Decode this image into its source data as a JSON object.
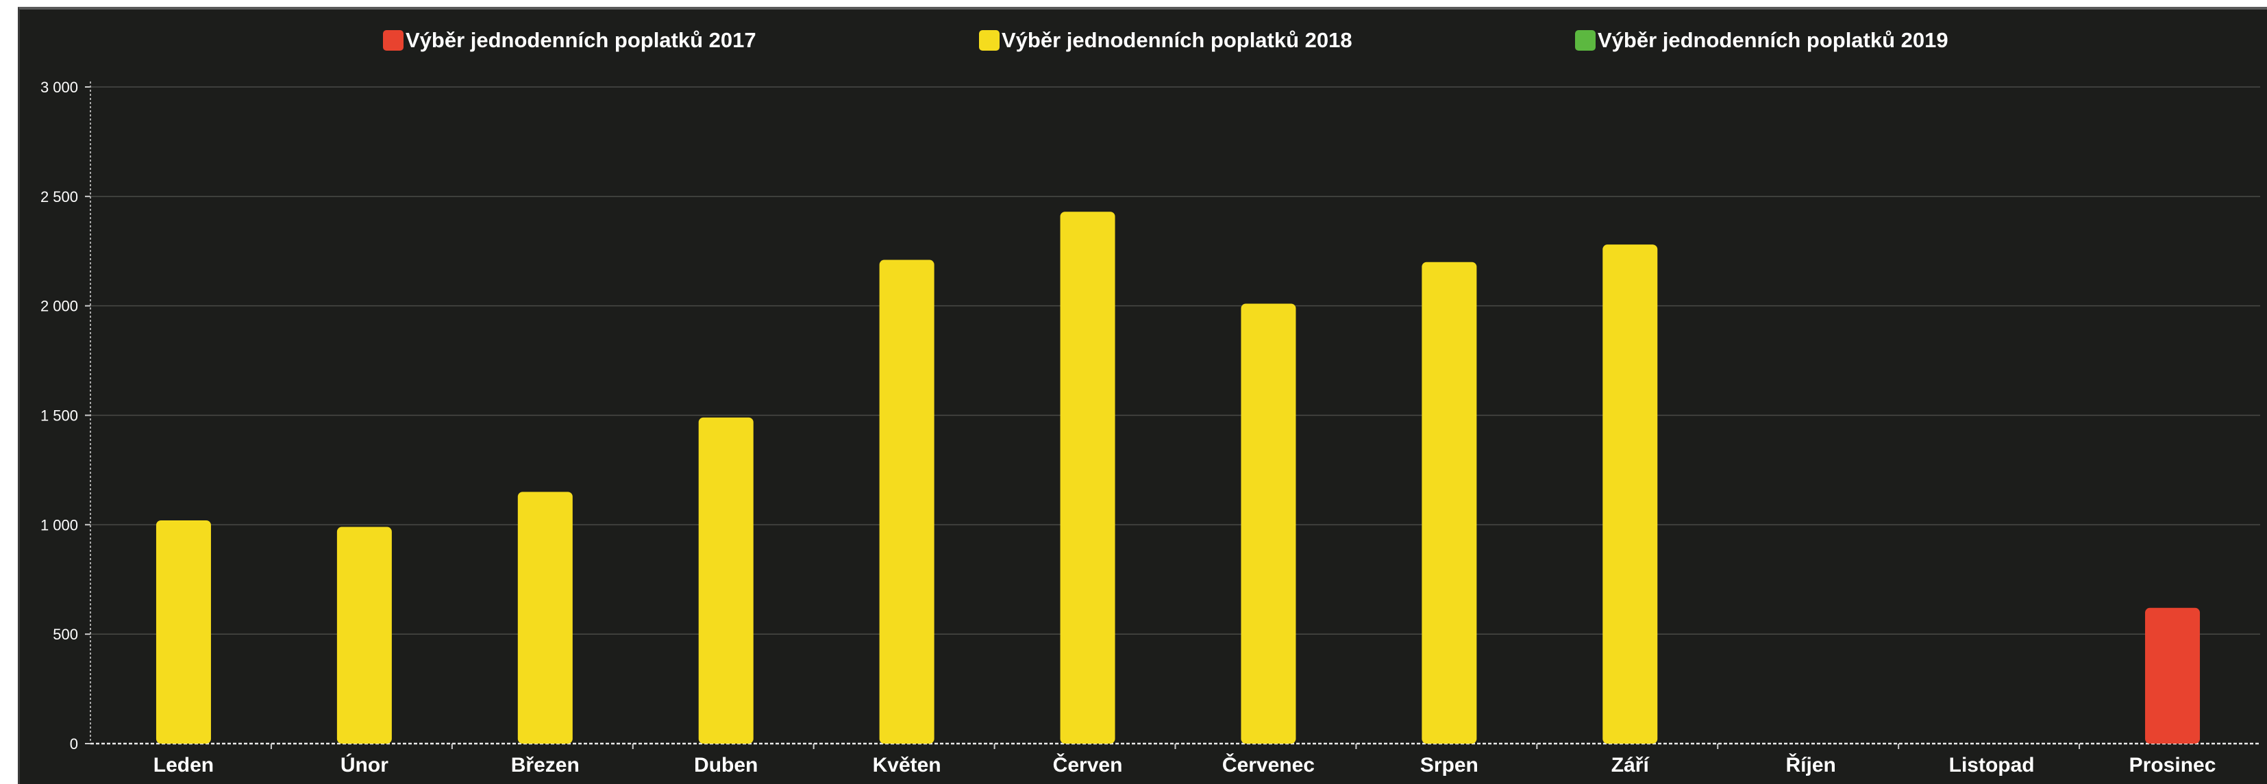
{
  "chart_data": {
    "type": "bar",
    "title": "",
    "xlabel": "",
    "ylabel": "",
    "categories": [
      "Leden",
      "Únor",
      "Březen",
      "Duben",
      "Květen",
      "Červen",
      "Červenec",
      "Srpen",
      "Září",
      "Říjen",
      "Listopad",
      "Prosinec"
    ],
    "series": [
      {
        "name": "Výběr jednodenních poplatků 2017",
        "color": "#e8432f",
        "values": [
          null,
          null,
          null,
          null,
          null,
          null,
          null,
          null,
          null,
          null,
          null,
          620
        ]
      },
      {
        "name": "Výběr jednodenních poplatků 2018",
        "color": "#f5dc1e",
        "values": [
          1020,
          990,
          1150,
          1490,
          2210,
          2430,
          2010,
          2200,
          2280,
          null,
          null,
          null
        ]
      },
      {
        "name": "Výběr jednodenních poplatků 2019",
        "color": "#5cb840",
        "values": [
          null,
          null,
          null,
          null,
          null,
          null,
          null,
          null,
          null,
          null,
          null,
          null
        ]
      }
    ],
    "yticks": [
      "0",
      "500",
      "1 000",
      "1 500",
      "2 000",
      "2 500",
      "3 000"
    ],
    "ytick_values": [
      0,
      500,
      1000,
      1500,
      2000,
      2500,
      3000
    ],
    "ylim": [
      0,
      3000
    ],
    "grid": true,
    "legend_position": "top"
  }
}
